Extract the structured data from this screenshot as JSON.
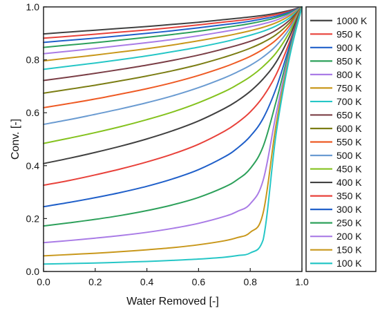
{
  "chart_data": {
    "type": "line",
    "title": "",
    "xlabel": "Water Removed [-]",
    "ylabel": "Conv. [-]",
    "xlim": [
      0.0,
      1.0
    ],
    "ylim": [
      0.0,
      1.0
    ],
    "x_ticks": [
      "0.0",
      "0.2",
      "0.4",
      "0.6",
      "0.8",
      "1.0"
    ],
    "y_ticks": [
      "0.0",
      "0.2",
      "0.4",
      "0.6",
      "0.8",
      "1.0"
    ],
    "grid": false,
    "legend_position": "right",
    "x": [
      0.0,
      0.1,
      0.2,
      0.3,
      0.4,
      0.5,
      0.6,
      0.7,
      0.75,
      0.8,
      0.85,
      0.9,
      0.95,
      1.0
    ],
    "series": [
      {
        "name": "1000 K",
        "color": "#404040",
        "values": [
          0.898,
          0.905,
          0.912,
          0.919,
          0.926,
          0.934,
          0.942,
          0.952,
          0.957,
          0.962,
          0.968,
          0.976,
          0.986,
          1.0
        ]
      },
      {
        "name": "950 K",
        "color": "#e8413a",
        "values": [
          0.882,
          0.889,
          0.897,
          0.905,
          0.913,
          0.922,
          0.932,
          0.943,
          0.948,
          0.954,
          0.962,
          0.971,
          0.983,
          1.0
        ]
      },
      {
        "name": "900 K",
        "color": "#1f5fc9",
        "values": [
          0.866,
          0.874,
          0.882,
          0.891,
          0.9,
          0.91,
          0.921,
          0.933,
          0.939,
          0.946,
          0.955,
          0.965,
          0.98,
          1.0
        ]
      },
      {
        "name": "850 K",
        "color": "#2ca05a",
        "values": [
          0.847,
          0.856,
          0.865,
          0.875,
          0.885,
          0.896,
          0.908,
          0.922,
          0.929,
          0.937,
          0.947,
          0.959,
          0.976,
          1.0
        ]
      },
      {
        "name": "800 K",
        "color": "#a97be6",
        "values": [
          0.823,
          0.833,
          0.843,
          0.854,
          0.865,
          0.877,
          0.891,
          0.907,
          0.915,
          0.925,
          0.936,
          0.95,
          0.971,
          1.0
        ]
      },
      {
        "name": "750 K",
        "color": "#c8971a",
        "values": [
          0.796,
          0.807,
          0.818,
          0.83,
          0.842,
          0.856,
          0.872,
          0.889,
          0.899,
          0.91,
          0.923,
          0.94,
          0.965,
          1.0
        ]
      },
      {
        "name": "700 K",
        "color": "#25c6c6",
        "values": [
          0.764,
          0.776,
          0.788,
          0.801,
          0.815,
          0.831,
          0.848,
          0.868,
          0.88,
          0.893,
          0.908,
          0.928,
          0.957,
          1.0
        ]
      },
      {
        "name": "650 K",
        "color": "#7a3d45",
        "values": [
          0.722,
          0.735,
          0.749,
          0.764,
          0.78,
          0.798,
          0.818,
          0.842,
          0.855,
          0.87,
          0.888,
          0.912,
          0.948,
          1.0
        ]
      },
      {
        "name": "600 K",
        "color": "#7b7d13",
        "values": [
          0.674,
          0.689,
          0.704,
          0.721,
          0.739,
          0.759,
          0.782,
          0.81,
          0.826,
          0.844,
          0.866,
          0.895,
          0.938,
          1.0
        ]
      },
      {
        "name": "550 K",
        "color": "#ee5a24",
        "values": [
          0.619,
          0.635,
          0.652,
          0.671,
          0.691,
          0.714,
          0.741,
          0.773,
          0.792,
          0.813,
          0.84,
          0.875,
          0.927,
          1.0
        ]
      },
      {
        "name": "500 K",
        "color": "#6a9bd1",
        "values": [
          0.556,
          0.574,
          0.594,
          0.615,
          0.638,
          0.664,
          0.695,
          0.732,
          0.754,
          0.779,
          0.811,
          0.853,
          0.915,
          1.0
        ]
      },
      {
        "name": "450 K",
        "color": "#84c21e",
        "values": [
          0.484,
          0.504,
          0.525,
          0.548,
          0.574,
          0.603,
          0.638,
          0.68,
          0.706,
          0.736,
          0.775,
          0.826,
          0.901,
          1.0
        ]
      },
      {
        "name": "400 K",
        "color": "#404040",
        "values": [
          0.408,
          0.428,
          0.45,
          0.474,
          0.501,
          0.532,
          0.569,
          0.616,
          0.645,
          0.681,
          0.728,
          0.791,
          0.884,
          1.0
        ]
      },
      {
        "name": "350 K",
        "color": "#e8413a",
        "values": [
          0.326,
          0.344,
          0.365,
          0.388,
          0.414,
          0.444,
          0.481,
          0.53,
          0.562,
          0.603,
          0.661,
          0.744,
          0.862,
          1.0
        ]
      },
      {
        "name": "300 K",
        "color": "#1f5fc9",
        "values": [
          0.245,
          0.261,
          0.279,
          0.299,
          0.322,
          0.35,
          0.385,
          0.433,
          0.466,
          0.511,
          0.579,
          0.692,
          0.846,
          1.0
        ]
      },
      {
        "name": "250 K",
        "color": "#2ca05a",
        "values": [
          0.172,
          0.184,
          0.197,
          0.212,
          0.23,
          0.252,
          0.28,
          0.319,
          0.347,
          0.389,
          0.473,
          0.642,
          0.831,
          1.0
        ]
      },
      {
        "name": "200 K",
        "color": "#a97be6",
        "values": [
          0.109,
          0.117,
          0.126,
          0.136,
          0.148,
          0.163,
          0.182,
          0.208,
          0.227,
          0.256,
          0.345,
          0.595,
          0.818,
          1.0
        ]
      },
      {
        "name": "150 K",
        "color": "#c8971a",
        "values": [
          0.059,
          0.064,
          0.069,
          0.075,
          0.082,
          0.09,
          0.101,
          0.116,
          0.128,
          0.148,
          0.222,
          0.555,
          0.808,
          1.0
        ]
      },
      {
        "name": "100 K",
        "color": "#25c6c6",
        "values": [
          0.028,
          0.03,
          0.032,
          0.035,
          0.038,
          0.042,
          0.047,
          0.054,
          0.06,
          0.07,
          0.12,
          0.52,
          0.8,
          1.0
        ]
      }
    ]
  }
}
